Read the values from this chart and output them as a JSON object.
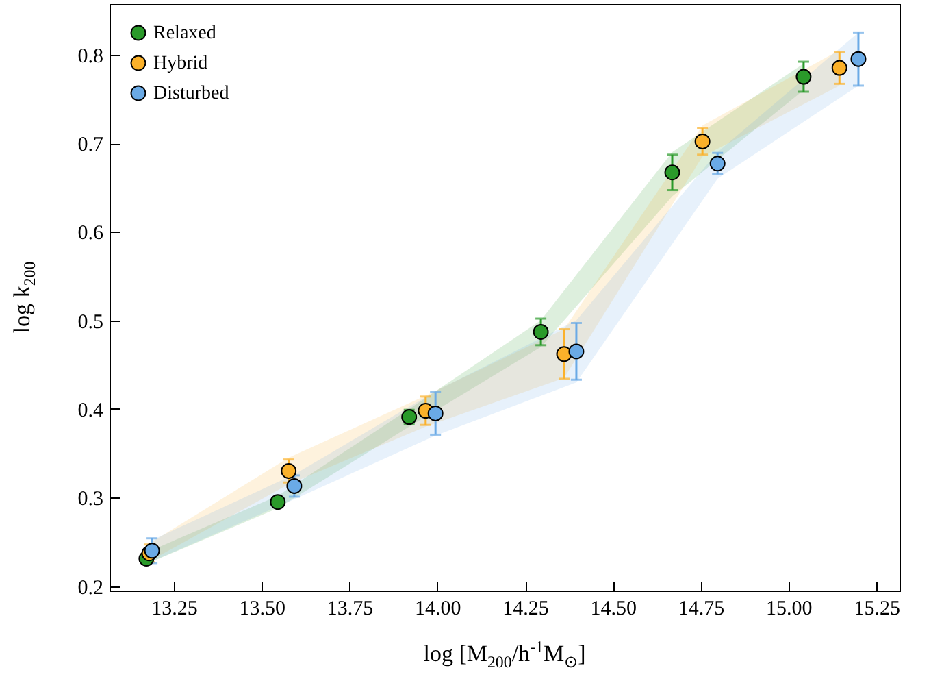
{
  "chart_data": {
    "type": "scatter",
    "xlabel": "log [M$_{200}$/h$^{-1}$M$_{⊙}$]",
    "ylabel": "log k$_{200}$",
    "series": [
      {
        "name": "Relaxed",
        "color": "#2a9a2a",
        "x": [
          13.172,
          13.546,
          13.92,
          14.295,
          14.669,
          15.043
        ],
        "values": [
          0.231,
          0.295,
          0.391,
          0.487,
          0.667,
          0.775
        ],
        "errors": [
          0.004,
          0.004,
          0.008,
          0.015,
          0.02,
          0.017
        ],
        "lower": [
          0.225,
          0.288,
          0.38,
          0.47,
          0.64,
          0.76
        ],
        "upper": [
          0.238,
          0.302,
          0.4,
          0.5,
          0.69,
          0.79
        ]
      },
      {
        "name": "Hybrid",
        "color": "#fbb12a",
        "x": [
          13.18,
          13.577,
          13.967,
          14.361,
          14.755,
          15.145
        ],
        "values": [
          0.237,
          0.33,
          0.398,
          0.462,
          0.702,
          0.785
        ],
        "errors": [
          0.01,
          0.013,
          0.016,
          0.028,
          0.015,
          0.018
        ],
        "lower": [
          0.228,
          0.315,
          0.38,
          0.435,
          0.685,
          0.765
        ],
        "upper": [
          0.248,
          0.345,
          0.415,
          0.49,
          0.72,
          0.805
        ]
      },
      {
        "name": "Disturbed",
        "color": "#6aaae6",
        "x": [
          13.188,
          13.593,
          13.995,
          14.396,
          14.798,
          15.199
        ],
        "values": [
          0.24,
          0.313,
          0.395,
          0.465,
          0.677,
          0.795
        ],
        "errors": [
          0.014,
          0.012,
          0.024,
          0.032,
          0.012,
          0.03
        ],
        "lower": [
          0.228,
          0.298,
          0.37,
          0.43,
          0.66,
          0.765
        ],
        "upper": [
          0.252,
          0.326,
          0.42,
          0.5,
          0.69,
          0.825
        ]
      }
    ],
    "xlim": [
      13.067,
      15.316
    ],
    "ylim": [
      0.195,
      0.857
    ],
    "xticks": [
      {
        "value": 13.25,
        "label": "13.25"
      },
      {
        "value": 13.5,
        "label": "13.50"
      },
      {
        "value": 13.75,
        "label": "13.75"
      },
      {
        "value": 14,
        "label": "14.00"
      },
      {
        "value": 14.25,
        "label": "14.25"
      },
      {
        "value": 14.5,
        "label": "14.50"
      },
      {
        "value": 14.75,
        "label": "14.75"
      },
      {
        "value": 15,
        "label": "15.00"
      },
      {
        "value": 15.25,
        "label": "15.25"
      }
    ],
    "yticks": [
      0.2,
      0.3,
      0.4,
      0.5,
      0.6,
      0.7,
      0.8
    ],
    "legend": "top left",
    "marker": "circle",
    "grid": false
  }
}
